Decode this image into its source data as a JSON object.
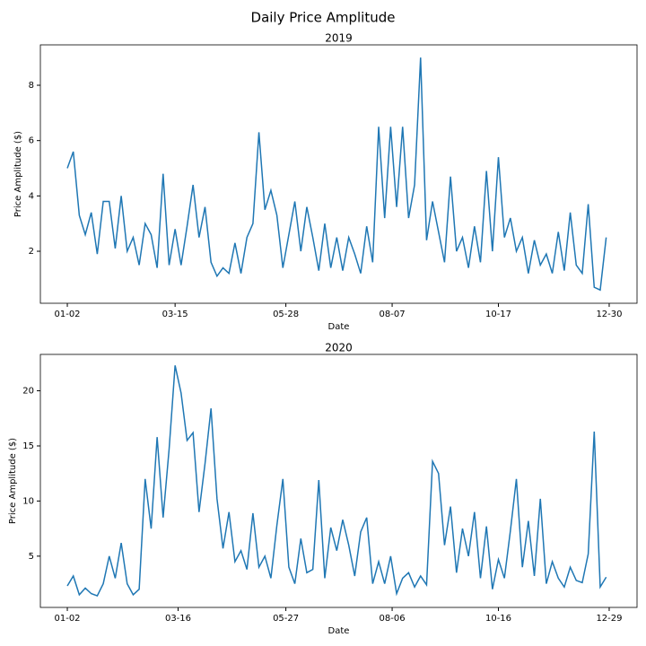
{
  "title": "Daily Price Amplitude",
  "chart_data": [
    {
      "type": "line",
      "title": "2019",
      "xlabel": "Date",
      "ylabel": "Price Amplitude ($)",
      "color": "#1f77b4",
      "grid": false,
      "x": [
        2,
        6,
        10,
        14,
        18,
        22,
        26,
        30,
        34,
        38,
        42,
        46,
        50,
        54,
        58,
        62,
        66,
        70,
        74,
        78,
        82,
        86,
        90,
        94,
        98,
        102,
        106,
        110,
        114,
        118,
        122,
        126,
        130,
        134,
        138,
        142,
        146,
        150,
        154,
        158,
        162,
        166,
        170,
        174,
        178,
        182,
        186,
        190,
        194,
        198,
        202,
        206,
        210,
        214,
        218,
        222,
        226,
        230,
        234,
        238,
        242,
        246,
        250,
        254,
        258,
        262,
        266,
        270,
        274,
        278,
        282,
        286,
        290,
        294,
        298,
        302,
        306,
        310,
        314,
        318,
        322,
        326,
        330,
        334,
        338,
        342,
        346,
        350,
        354,
        358,
        362
      ],
      "values": [
        5.0,
        5.6,
        3.3,
        2.6,
        3.4,
        1.9,
        3.8,
        3.8,
        2.1,
        4.0,
        2.0,
        2.5,
        1.5,
        3.0,
        2.6,
        1.4,
        4.8,
        1.5,
        2.8,
        1.5,
        2.9,
        4.4,
        2.5,
        3.6,
        1.6,
        1.1,
        1.4,
        1.2,
        2.3,
        1.2,
        2.5,
        3.0,
        6.3,
        3.5,
        4.2,
        3.3,
        1.4,
        2.6,
        3.8,
        2.0,
        3.6,
        2.5,
        1.3,
        3.0,
        1.4,
        2.5,
        1.3,
        2.5,
        1.9,
        1.2,
        2.9,
        1.6,
        6.5,
        3.2,
        6.5,
        3.6,
        6.5,
        3.2,
        4.4,
        9.0,
        2.4,
        3.8,
        2.7,
        1.6,
        4.7,
        2.0,
        2.5,
        1.4,
        2.9,
        1.6,
        4.9,
        2.0,
        5.4,
        2.5,
        3.2,
        2.0,
        2.5,
        1.2,
        2.4,
        1.5,
        1.9,
        1.2,
        2.7,
        1.3,
        3.4,
        1.5,
        1.2,
        3.7,
        0.7,
        0.6,
        2.5
      ],
      "xlim": [
        -16,
        382.6
      ],
      "ylim": [
        0.12,
        9.46
      ],
      "xticks": [
        {
          "value": 2,
          "label": "01-02"
        },
        {
          "value": 74,
          "label": "03-15"
        },
        {
          "value": 148,
          "label": "05-28"
        },
        {
          "value": 219,
          "label": "08-07"
        },
        {
          "value": 290,
          "label": "10-17"
        },
        {
          "value": 364,
          "label": "12-30"
        }
      ],
      "yticks": [
        2,
        4,
        6,
        8
      ]
    },
    {
      "type": "line",
      "title": "2020",
      "xlabel": "Date",
      "ylabel": "Price Amplitude ($)",
      "color": "#1f77b4",
      "grid": false,
      "x": [
        2,
        6,
        10,
        14,
        18,
        22,
        26,
        30,
        34,
        38,
        42,
        46,
        50,
        54,
        58,
        62,
        66,
        70,
        74,
        78,
        82,
        86,
        90,
        94,
        98,
        102,
        106,
        110,
        114,
        118,
        122,
        126,
        130,
        134,
        138,
        142,
        146,
        150,
        154,
        158,
        162,
        166,
        170,
        174,
        178,
        182,
        186,
        190,
        194,
        198,
        202,
        206,
        210,
        214,
        218,
        222,
        226,
        230,
        234,
        238,
        242,
        246,
        250,
        254,
        258,
        262,
        266,
        270,
        274,
        278,
        282,
        286,
        290,
        294,
        298,
        302,
        306,
        310,
        314,
        318,
        322,
        326,
        330,
        334,
        338,
        342,
        346,
        350,
        354,
        358,
        362
      ],
      "values": [
        2.3,
        3.2,
        1.5,
        2.1,
        1.6,
        1.4,
        2.5,
        5.0,
        3.0,
        6.2,
        2.5,
        1.5,
        2.0,
        12.0,
        7.5,
        15.8,
        8.5,
        14.7,
        22.3,
        19.8,
        15.5,
        16.2,
        9.0,
        13.4,
        18.4,
        10.2,
        5.7,
        9.0,
        4.5,
        5.5,
        3.8,
        8.9,
        4.0,
        5.0,
        3.0,
        7.8,
        12.0,
        4.0,
        2.5,
        6.6,
        3.5,
        3.8,
        11.9,
        3.0,
        7.6,
        5.5,
        8.3,
        6.0,
        3.2,
        7.2,
        8.5,
        2.5,
        4.5,
        2.5,
        5.0,
        1.6,
        3.0,
        3.5,
        2.2,
        3.2,
        2.4,
        13.6,
        12.5,
        6.0,
        9.5,
        3.5,
        7.5,
        5.0,
        9.0,
        3.0,
        7.7,
        2.0,
        4.7,
        3.0,
        7.3,
        12.0,
        4.0,
        8.2,
        3.2,
        10.2,
        2.5,
        4.5,
        3.0,
        2.2,
        4.0,
        2.8,
        2.6,
        5.2,
        16.3,
        2.2,
        3.1
      ],
      "xlim": [
        -16,
        382.6
      ],
      "ylim": [
        0.35,
        23.3
      ],
      "xticks": [
        {
          "value": 2,
          "label": "01-02"
        },
        {
          "value": 76,
          "label": "03-16"
        },
        {
          "value": 148,
          "label": "05-27"
        },
        {
          "value": 219,
          "label": "08-06"
        },
        {
          "value": 290,
          "label": "10-16"
        },
        {
          "value": 364,
          "label": "12-29"
        }
      ],
      "yticks": [
        5,
        10,
        15,
        20
      ]
    }
  ]
}
